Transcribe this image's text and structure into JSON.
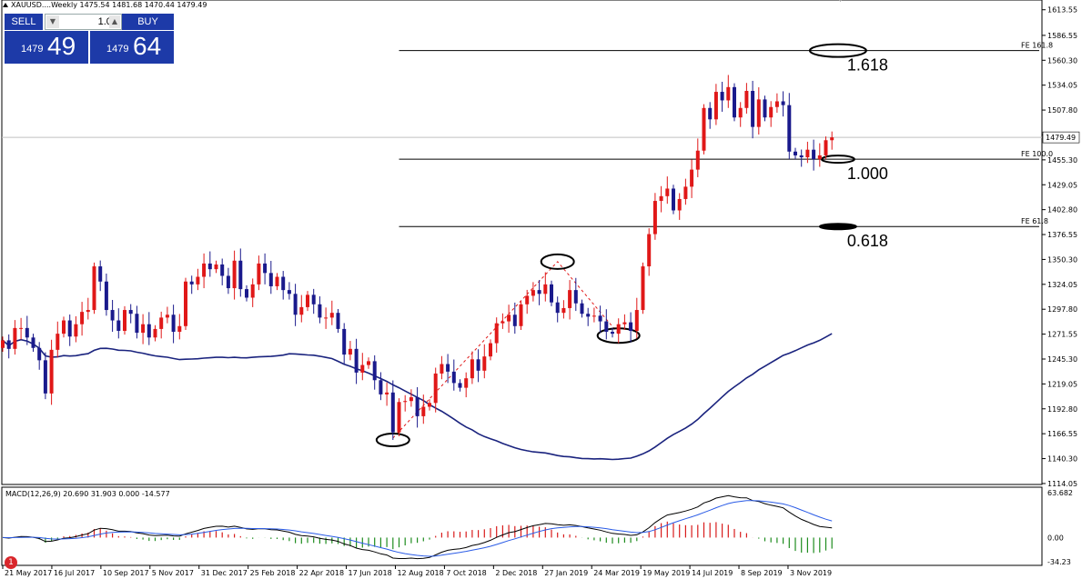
{
  "header": {
    "symbol_label": "XAUUSD....Weekly",
    "ohlc": "1475.54 1481.68 1470.44 1479.49"
  },
  "trade_panel": {
    "sell_label": "SELL",
    "buy_label": "BUY",
    "lot_value": "1.00",
    "sell_small": "1479",
    "sell_big": "49",
    "buy_small": "1479",
    "buy_big": "64"
  },
  "notification_badge": "1",
  "colors": {
    "up": "#e01818",
    "down": "#1a1a8c",
    "ma": "#1a237e",
    "fib_line": "#000000",
    "macd_fast": "#000000",
    "macd_signal": "#2a5be6",
    "hist_pos": "#d81b1b",
    "hist_neg": "#1e8c1e",
    "trade_panel": "#1d3aa8"
  },
  "chart_data": [
    {
      "type": "candlestick",
      "ylim": [
        1114.0,
        1620.0
      ],
      "price_ticks": [
        "1613.55",
        "1586.55",
        "1560.30",
        "1534.05",
        "1507.80",
        "1481.80",
        "1455.30",
        "1429.05",
        "1402.80",
        "1376.55",
        "1350.30",
        "1324.05",
        "1297.80",
        "1271.55",
        "1245.30",
        "1219.05",
        "1192.80",
        "1166.55",
        "1140.30",
        "1114.05"
      ],
      "current_price": "1479.49",
      "x_ticks": [
        "21 May 2017",
        "16 Jul 2017",
        "10 Sep 2017",
        "5 Nov 2017",
        "31 Dec 2017",
        "25 Feb 2018",
        "22 Apr 2018",
        "17 Jun 2018",
        "12 Aug 2018",
        "7 Oct 2018",
        "2 Dec 2018",
        "27 Jan 2019",
        "24 Mar 2019",
        "19 May 2019",
        "14 Jul 2019",
        "8 Sep 2019",
        "3 Nov 2019"
      ],
      "close": [
        1265,
        1256,
        1278,
        1278,
        1268,
        1257,
        1244,
        1209,
        1255,
        1272,
        1286,
        1269,
        1282,
        1295,
        1297,
        1343,
        1327,
        1297,
        1286,
        1275,
        1297,
        1293,
        1273,
        1282,
        1268,
        1277,
        1289,
        1292,
        1274,
        1280,
        1327,
        1324,
        1332,
        1346,
        1340,
        1345,
        1333,
        1320,
        1349,
        1319,
        1310,
        1324,
        1346,
        1336,
        1322,
        1332,
        1318,
        1314,
        1292,
        1300,
        1313,
        1303,
        1289,
        1289,
        1294,
        1277,
        1250,
        1256,
        1231,
        1239,
        1243,
        1223,
        1208,
        1210,
        1168,
        1200,
        1201,
        1205,
        1185,
        1195,
        1199,
        1230,
        1240,
        1232,
        1220,
        1215,
        1225,
        1245,
        1233,
        1248,
        1262,
        1283,
        1285,
        1292,
        1280,
        1303,
        1312,
        1318,
        1314,
        1324,
        1305,
        1294,
        1299,
        1318,
        1304,
        1293,
        1290,
        1291,
        1285,
        1274,
        1272,
        1282,
        1284,
        1275,
        1297,
        1343,
        1377,
        1412,
        1417,
        1425,
        1402,
        1414,
        1427,
        1445,
        1465,
        1510,
        1498,
        1527,
        1518,
        1532,
        1500,
        1510,
        1528,
        1490,
        1519,
        1500,
        1511,
        1517,
        1513,
        1464,
        1460,
        1458,
        1466,
        1456,
        1460,
        1476,
        1479
      ],
      "ma_level_at_end": 1272,
      "fibonacci": [
        {
          "tag": "FE 161.8",
          "label": "1.618",
          "price": 1570.5
        },
        {
          "tag": "FE 100.0",
          "label": "1.000",
          "price": 1456.0
        },
        {
          "tag": "FE 61.8",
          "label": "0.618",
          "price": 1385.0
        }
      ]
    },
    {
      "type": "macd",
      "title": "MACD(12,26,9) 20.690 31.903 0.000 -14.577",
      "y_ticks": [
        "63.682",
        "0.00",
        "-34.23"
      ],
      "ylim": [
        -34.23,
        63.682
      ]
    }
  ]
}
